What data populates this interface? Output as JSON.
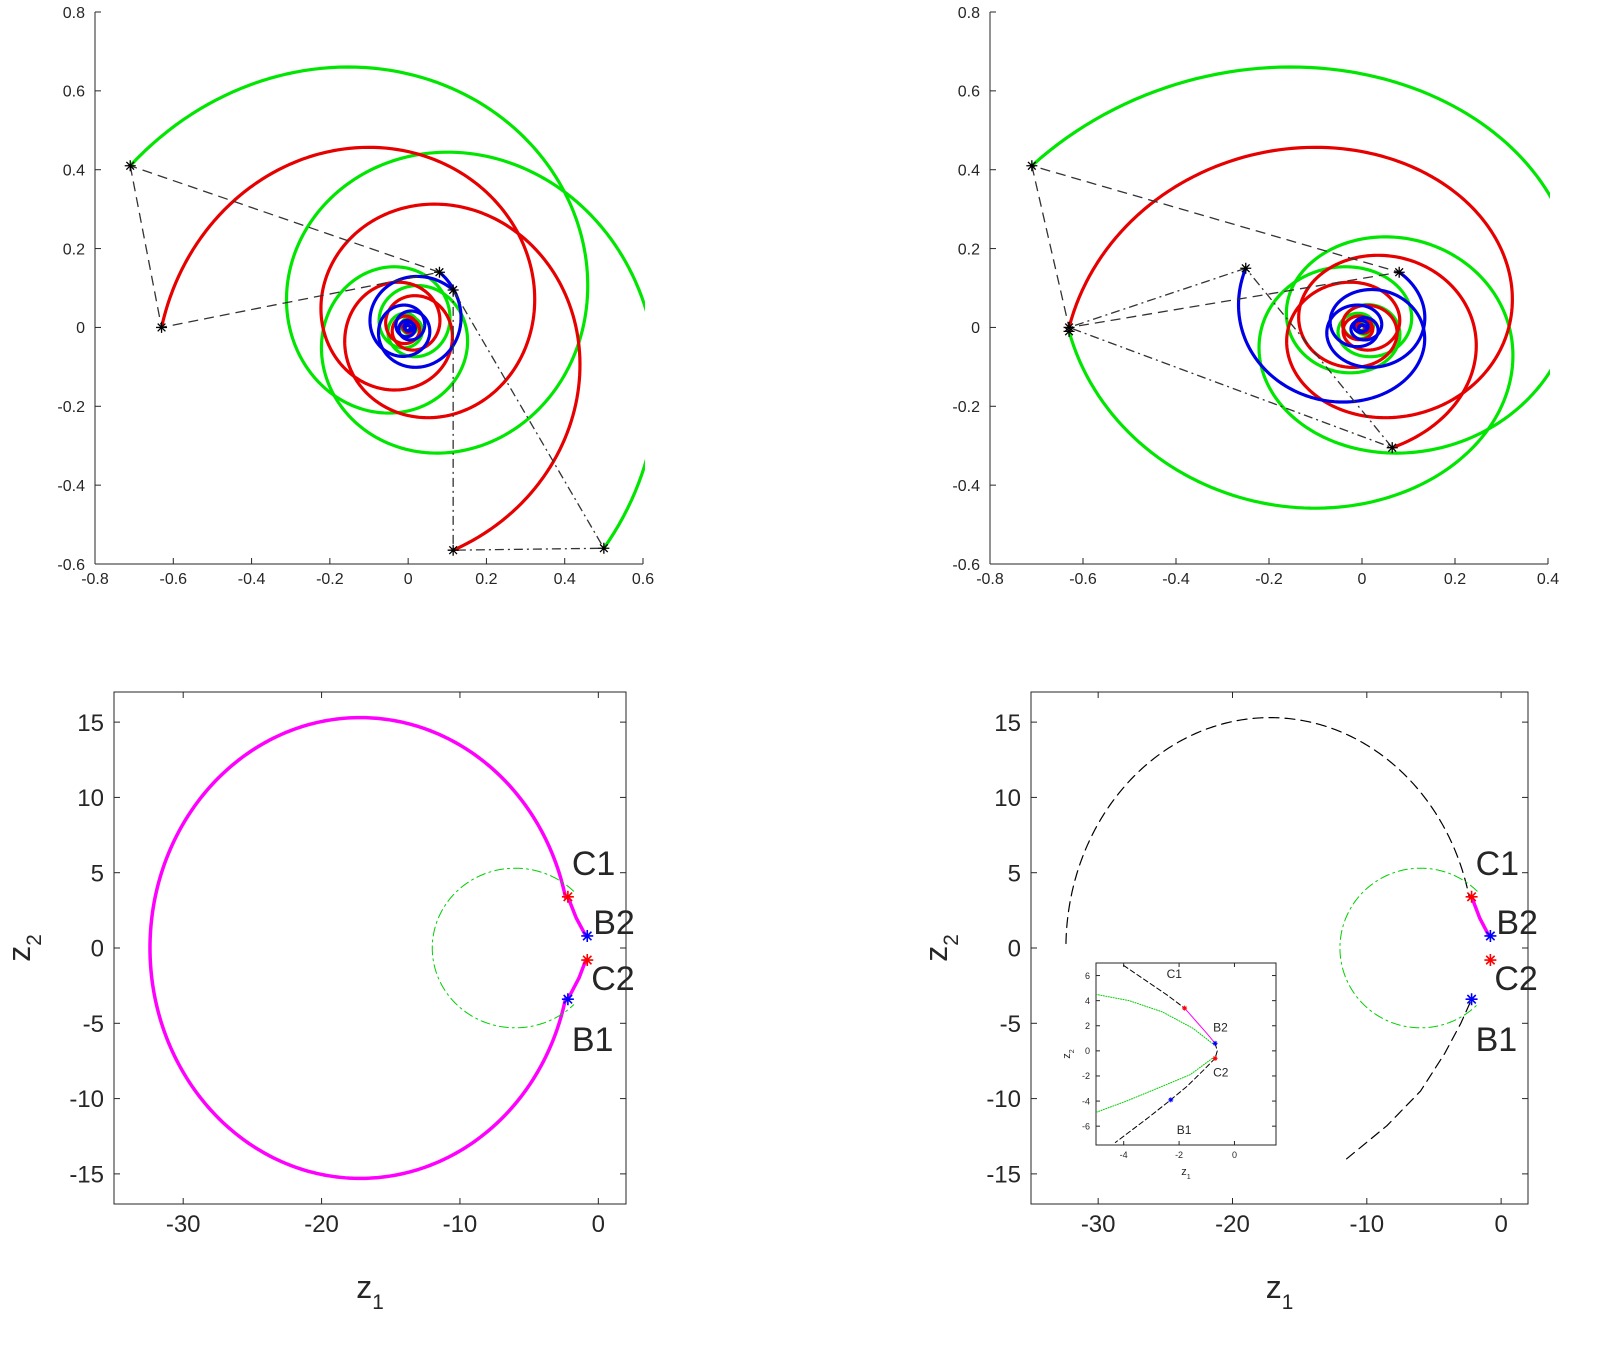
{
  "chart_data": [
    {
      "type": "line",
      "panel": "top-left",
      "box": false,
      "xlim": [
        -0.8,
        0.6
      ],
      "ylim": [
        -0.6,
        0.8
      ],
      "xticks": [
        -0.8,
        -0.6,
        -0.4,
        -0.2,
        0,
        0.2,
        0.4,
        0.6
      ],
      "yticks": [
        -0.6,
        -0.4,
        -0.2,
        0,
        0.2,
        0.4,
        0.6,
        0.8
      ],
      "xtick_labels": [
        "-0.8",
        "-0.6",
        "-0.4",
        "-0.2",
        "0",
        "0.2",
        "0.4",
        "0.6"
      ],
      "ytick_labels": [
        "-0.6",
        "-0.4",
        "-0.2",
        "0",
        "0.2",
        "0.4",
        "0.6",
        "0.8"
      ],
      "xlabel": "",
      "ylabel": "",
      "series": [
        {
          "color": "#00e600",
          "style": "solid",
          "spiral": {
            "start": [
              -0.71,
              0.41
            ],
            "turns": 3.5,
            "direction": "cw"
          }
        },
        {
          "color": "#00e600",
          "style": "solid",
          "spiral": {
            "start": [
              0.5,
              -0.56
            ],
            "turns": 3.5,
            "direction": "ccw"
          }
        },
        {
          "color": "#e60000",
          "style": "solid",
          "spiral": {
            "start": [
              -0.63,
              0.0
            ],
            "turns": 3.5,
            "direction": "cw"
          }
        },
        {
          "color": "#e60000",
          "style": "solid",
          "spiral": {
            "start": [
              0.115,
              -0.565
            ],
            "turns": 3.5,
            "direction": "ccw"
          }
        },
        {
          "color": "#0000e6",
          "style": "solid",
          "spiral": {
            "start": [
              0.08,
              0.14
            ],
            "turns": 3.0,
            "direction": "cw"
          }
        },
        {
          "color": "#0000e6",
          "style": "solid",
          "spiral": {
            "start": [
              0.115,
              0.095
            ],
            "turns": 3.0,
            "direction": "ccw"
          }
        }
      ],
      "dashed_polygons": [
        {
          "style": "dashed",
          "points": [
            [
              -0.71,
              0.41
            ],
            [
              -0.63,
              0.0
            ],
            [
              0.08,
              0.14
            ],
            [
              -0.71,
              0.41
            ]
          ]
        },
        {
          "style": "dashdot",
          "points": [
            [
              0.115,
              0.095
            ],
            [
              0.5,
              -0.56
            ],
            [
              0.115,
              -0.565
            ],
            [
              0.115,
              0.095
            ]
          ]
        }
      ],
      "markers": [
        [
          -0.71,
          0.41
        ],
        [
          -0.63,
          0.0
        ],
        [
          0.08,
          0.14
        ],
        [
          0.115,
          0.095
        ],
        [
          0.5,
          -0.56
        ],
        [
          0.115,
          -0.565
        ]
      ]
    },
    {
      "type": "line",
      "panel": "top-right",
      "box": false,
      "xlim": [
        -0.8,
        0.4
      ],
      "ylim": [
        -0.6,
        0.8
      ],
      "xticks": [
        -0.8,
        -0.6,
        -0.4,
        -0.2,
        0,
        0.2,
        0.4
      ],
      "yticks": [
        -0.6,
        -0.4,
        -0.2,
        0,
        0.2,
        0.4,
        0.6,
        0.8
      ],
      "xtick_labels": [
        "-0.8",
        "-0.6",
        "-0.4",
        "-0.2",
        "0",
        "0.2",
        "0.4"
      ],
      "ytick_labels": [
        "-0.6",
        "-0.4",
        "-0.2",
        "0",
        "0.2",
        "0.4",
        "0.6",
        "0.8"
      ],
      "xlabel": "",
      "ylabel": "",
      "series": [
        {
          "color": "#00e600",
          "style": "solid",
          "spiral": {
            "start": [
              -0.71,
              0.41
            ],
            "turns": 3.5,
            "direction": "cw"
          }
        },
        {
          "color": "#00e600",
          "style": "solid",
          "spiral": {
            "start": [
              -0.63,
              -0.01
            ],
            "turns": 3.5,
            "direction": "ccw"
          }
        },
        {
          "color": "#e60000",
          "style": "solid",
          "spiral": {
            "start": [
              -0.63,
              0.0
            ],
            "turns": 3.5,
            "direction": "cw"
          }
        },
        {
          "color": "#e60000",
          "style": "solid",
          "spiral": {
            "start": [
              0.065,
              -0.305
            ],
            "turns": 3.5,
            "direction": "ccw"
          }
        },
        {
          "color": "#0000e6",
          "style": "solid",
          "spiral": {
            "start": [
              -0.25,
              0.15
            ],
            "turns": 3.0,
            "direction": "ccw"
          }
        },
        {
          "color": "#0000e6",
          "style": "solid",
          "spiral": {
            "start": [
              0.08,
              0.14
            ],
            "turns": 3.0,
            "direction": "cw"
          }
        }
      ],
      "dashed_polygons": [
        {
          "style": "dashed",
          "points": [
            [
              -0.71,
              0.41
            ],
            [
              -0.63,
              0.0
            ],
            [
              0.08,
              0.14
            ],
            [
              -0.71,
              0.41
            ]
          ]
        },
        {
          "style": "dashdot",
          "points": [
            [
              -0.25,
              0.15
            ],
            [
              -0.63,
              0.0
            ],
            [
              0.065,
              -0.305
            ],
            [
              -0.25,
              0.15
            ]
          ]
        }
      ],
      "markers": [
        [
          -0.71,
          0.41
        ],
        [
          -0.63,
          0.0
        ],
        [
          -0.63,
          -0.01
        ],
        [
          0.08,
          0.14
        ],
        [
          -0.25,
          0.15
        ],
        [
          0.065,
          -0.305
        ]
      ]
    },
    {
      "type": "line",
      "panel": "bottom-left",
      "box": true,
      "xlim": [
        -35,
        2
      ],
      "ylim": [
        -17,
        17
      ],
      "xticks": [
        -30,
        -20,
        -10,
        0
      ],
      "yticks": [
        -15,
        -10,
        -5,
        0,
        5,
        10,
        15
      ],
      "xtick_labels": [
        "-30",
        "-20",
        "-10",
        "0"
      ],
      "ytick_labels": [
        "-15",
        "-10",
        "-5",
        "0",
        "5",
        "10",
        "15"
      ],
      "xlabel": "z",
      "xlabel_sub": "1",
      "ylabel": "z",
      "ylabel_sub": "2",
      "series": [
        {
          "name": "",
          "color": "#ff00ff",
          "style": "solid",
          "width": 3.5,
          "curve": "ellipse-arc",
          "center": [
            -17.2,
            0
          ],
          "radii": [
            15.2,
            15.3
          ],
          "from": [
            -2.2,
            3.4
          ],
          "to": [
            -2.2,
            -3.4
          ],
          "via": "left"
        },
        {
          "name": "",
          "color": "#ff00ff",
          "style": "solid",
          "width": 3.5,
          "points": [
            [
              -2.2,
              3.4
            ],
            [
              -1.6,
              2.0
            ],
            [
              -0.9,
              0.8
            ]
          ]
        },
        {
          "name": "",
          "color": "#ff00ff",
          "style": "solid",
          "width": 3.5,
          "points": [
            [
              -2.2,
              -3.4
            ],
            [
              -1.4,
              -2.0
            ],
            [
              -0.9,
              -0.8
            ]
          ]
        },
        {
          "name": "",
          "color": "#00d000",
          "style": "dashdot",
          "width": 1,
          "curve": "ellipse-arc",
          "center": [
            -6.0,
            0
          ],
          "radii": [
            6.0,
            5.3
          ],
          "from": [
            -2.2,
            3.4
          ],
          "to": [
            -2.2,
            -3.4
          ],
          "via": "left"
        }
      ],
      "points_labeled": [
        {
          "label": "C1",
          "x": -2.2,
          "y": 3.4,
          "color": "#ff0000"
        },
        {
          "label": "B2",
          "x": -0.8,
          "y": 0.8,
          "color": "#0000ff"
        },
        {
          "label": "C2",
          "x": -0.8,
          "y": -0.8,
          "color": "#ff0000"
        },
        {
          "label": "B1",
          "x": -2.2,
          "y": -3.4,
          "color": "#0000ff"
        }
      ]
    },
    {
      "type": "line",
      "panel": "bottom-right",
      "box": true,
      "xlim": [
        -35,
        2
      ],
      "ylim": [
        -17,
        17
      ],
      "xticks": [
        -30,
        -20,
        -10,
        0
      ],
      "yticks": [
        -15,
        -10,
        -5,
        0,
        5,
        10,
        15
      ],
      "xtick_labels": [
        "-30",
        "-20",
        "-10",
        "0"
      ],
      "ytick_labels": [
        "-15",
        "-10",
        "-5",
        "0",
        "5",
        "10",
        "15"
      ],
      "xlabel": "z",
      "xlabel_sub": "1",
      "ylabel": "z",
      "ylabel_sub": "2",
      "series": [
        {
          "name": "",
          "color": "#000000",
          "style": "dashed",
          "width": 1.2,
          "curve": "ellipse-arc",
          "center": [
            -17.2,
            0
          ],
          "radii": [
            15.2,
            15.3
          ],
          "from": [
            -32.4,
            0.3
          ],
          "to": [
            -2.2,
            3.4
          ],
          "via": "top"
        },
        {
          "name": "",
          "color": "#000000",
          "style": "dashed",
          "width": 1.2,
          "points": [
            [
              -11.5,
              -14.0
            ],
            [
              -8.5,
              -11.8
            ],
            [
              -6.0,
              -9.5
            ],
            [
              -4.2,
              -7.0
            ],
            [
              -3.0,
              -5.0
            ],
            [
              -2.2,
              -3.4
            ]
          ]
        },
        {
          "name": "",
          "color": "#00d000",
          "style": "dashdot",
          "width": 1,
          "curve": "ellipse-arc",
          "center": [
            -6.0,
            0
          ],
          "radii": [
            6.0,
            5.3
          ],
          "from": [
            -2.2,
            3.4
          ],
          "to": [
            -2.2,
            -3.4
          ],
          "via": "left"
        },
        {
          "name": "",
          "color": "#ff00ff",
          "style": "solid",
          "width": 3.5,
          "points": [
            [
              -2.2,
              3.4
            ],
            [
              -1.6,
              2.0
            ],
            [
              -0.9,
              0.8
            ]
          ]
        }
      ],
      "points_labeled": [
        {
          "label": "C1",
          "x": -2.2,
          "y": 3.4,
          "color": "#ff0000"
        },
        {
          "label": "B2",
          "x": -0.8,
          "y": 0.8,
          "color": "#0000ff"
        },
        {
          "label": "C2",
          "x": -0.8,
          "y": -0.8,
          "color": "#ff0000"
        },
        {
          "label": "B1",
          "x": -2.2,
          "y": -3.4,
          "color": "#0000ff"
        }
      ],
      "inset": {
        "xlim": [
          -5,
          1.5
        ],
        "ylim": [
          -7.5,
          7
        ],
        "xticks": [
          -4,
          -2,
          0
        ],
        "yticks": [
          -6,
          -4,
          -2,
          0,
          2,
          4,
          6
        ],
        "xtick_labels": [
          "-4",
          "-2",
          "0"
        ],
        "ytick_labels": [
          "-6",
          "-4",
          "-2",
          "0",
          "2",
          "4",
          "6"
        ],
        "xlabel": "z",
        "xlabel_sub": "1",
        "ylabel": "z",
        "ylabel_sub": "2",
        "series": [
          {
            "color": "#000000",
            "style": "dashed",
            "points": [
              [
                -4.0,
                6.8
              ],
              [
                -3.2,
                5.6
              ],
              [
                -2.4,
                4.4
              ],
              [
                -1.8,
                3.4
              ]
            ]
          },
          {
            "color": "#ff00ff",
            "style": "solid",
            "points": [
              [
                -1.8,
                3.4
              ],
              [
                -1.4,
                2.4
              ],
              [
                -1.0,
                1.4
              ],
              [
                -0.7,
                0.6
              ]
            ]
          },
          {
            "color": "#000000",
            "style": "dashed",
            "points": [
              [
                -0.7,
                0.6
              ],
              [
                -0.62,
                0.0
              ],
              [
                -0.7,
                -0.6
              ]
            ]
          },
          {
            "color": "#000000",
            "style": "dashed",
            "points": [
              [
                -0.7,
                -0.6
              ],
              [
                -1.1,
                -1.5
              ],
              [
                -1.7,
                -2.8
              ],
              [
                -2.3,
                -3.9
              ],
              [
                -3.1,
                -5.3
              ],
              [
                -4.3,
                -7.3
              ]
            ]
          },
          {
            "color": "#00d000",
            "style": "dotted",
            "points": [
              [
                -5.0,
                4.5
              ],
              [
                -3.8,
                4.0
              ],
              [
                -2.6,
                3.1
              ],
              [
                -1.5,
                1.8
              ],
              [
                -0.8,
                0.6
              ]
            ]
          },
          {
            "color": "#00d000",
            "style": "dotted",
            "points": [
              [
                -0.8,
                -0.6
              ],
              [
                -1.6,
                -1.9
              ],
              [
                -2.8,
                -3.0
              ],
              [
                -3.9,
                -4.0
              ],
              [
                -5.0,
                -4.9
              ]
            ]
          }
        ],
        "points_labeled": [
          {
            "label": "C1",
            "x": -1.8,
            "y": 3.4,
            "color": "#ff0000"
          },
          {
            "label": "B2",
            "x": -0.7,
            "y": 0.6,
            "color": "#0000ff"
          },
          {
            "label": "C2",
            "x": -0.7,
            "y": -0.6,
            "color": "#ff0000"
          },
          {
            "label": "B1",
            "x": -2.3,
            "y": -3.9,
            "color": "#0000ff"
          }
        ]
      }
    }
  ]
}
